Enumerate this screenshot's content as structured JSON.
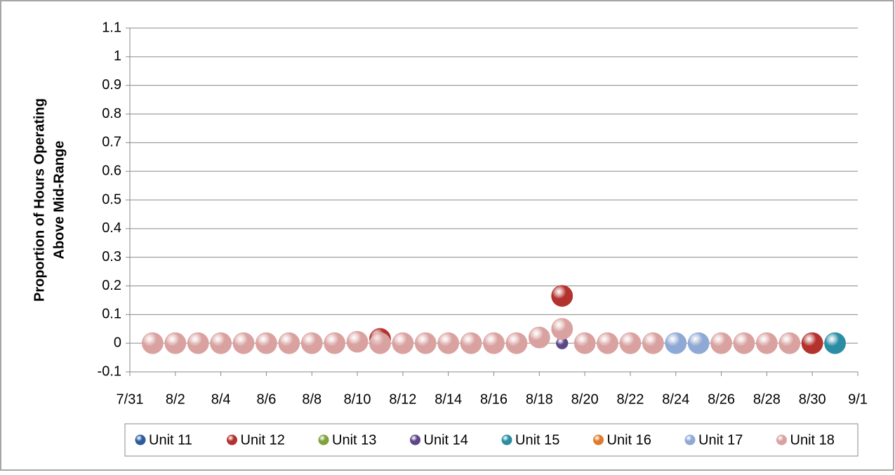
{
  "chart_data": {
    "type": "bubble",
    "y_label": [
      "Proportion of Hours Operating",
      "Above Mid-Range"
    ],
    "xlim": [
      "7/31",
      "9/1"
    ],
    "xticks": [
      "7/31",
      "8/2",
      "8/4",
      "8/6",
      "8/8",
      "8/10",
      "8/12",
      "8/14",
      "8/16",
      "8/18",
      "8/20",
      "8/22",
      "8/24",
      "8/26",
      "8/28",
      "8/30",
      "9/1"
    ],
    "ylim": [
      -0.1,
      1.1
    ],
    "yticks": [
      -0.1,
      0,
      0.1,
      0.2,
      0.3,
      0.4,
      0.5,
      0.6,
      0.7,
      0.8,
      0.9,
      1,
      1.1
    ],
    "grid": true,
    "legend": "bottom",
    "series": [
      {
        "name": "Unit 11",
        "color": "#2e5c9e",
        "x": [],
        "values": [],
        "sizes": []
      },
      {
        "name": "Unit 12",
        "color": "#b3322e",
        "x": [
          "8/11",
          "8/19",
          "8/30"
        ],
        "values": [
          0.015,
          0.165,
          0
        ],
        "sizes": [
          1,
          1,
          1
        ]
      },
      {
        "name": "Unit 13",
        "color": "#7ea33c",
        "x": [],
        "values": [],
        "sizes": []
      },
      {
        "name": "Unit 14",
        "color": "#5d4788",
        "x": [
          "8/19"
        ],
        "values": [
          0
        ],
        "sizes": [
          0.3
        ]
      },
      {
        "name": "Unit 15",
        "color": "#2b8da3",
        "x": [
          "8/31"
        ],
        "values": [
          0
        ],
        "sizes": [
          1
        ]
      },
      {
        "name": "Unit 16",
        "color": "#e07a2c",
        "x": [
          "8/25"
        ],
        "values": [
          0
        ],
        "sizes": [
          0.1
        ]
      },
      {
        "name": "Unit 17",
        "color": "#8fa9d6",
        "x": [
          "8/24",
          "8/25"
        ],
        "values": [
          0,
          0
        ],
        "sizes": [
          1,
          1
        ]
      },
      {
        "name": "Unit 18",
        "color": "#d9a2a0",
        "x": [
          "8/1",
          "8/2",
          "8/3",
          "8/4",
          "8/5",
          "8/6",
          "8/7",
          "8/8",
          "8/9",
          "8/10",
          "8/11",
          "8/12",
          "8/13",
          "8/14",
          "8/15",
          "8/16",
          "8/17",
          "8/18",
          "8/19",
          "8/20",
          "8/21",
          "8/22",
          "8/23",
          "8/26",
          "8/27",
          "8/28",
          "8/29"
        ],
        "values": [
          0,
          0,
          0,
          0,
          0,
          0,
          0,
          0,
          0,
          0.005,
          0,
          0,
          0,
          0,
          0,
          0,
          0,
          0.02,
          0.05,
          0,
          0,
          0,
          0,
          0,
          0,
          0,
          0
        ],
        "sizes": [
          1,
          1,
          1,
          1,
          1,
          1,
          1,
          1,
          1,
          1,
          1,
          1,
          1,
          1,
          1,
          1,
          1,
          1,
          1,
          1,
          1,
          1,
          1,
          1,
          1,
          1,
          1
        ]
      }
    ]
  }
}
